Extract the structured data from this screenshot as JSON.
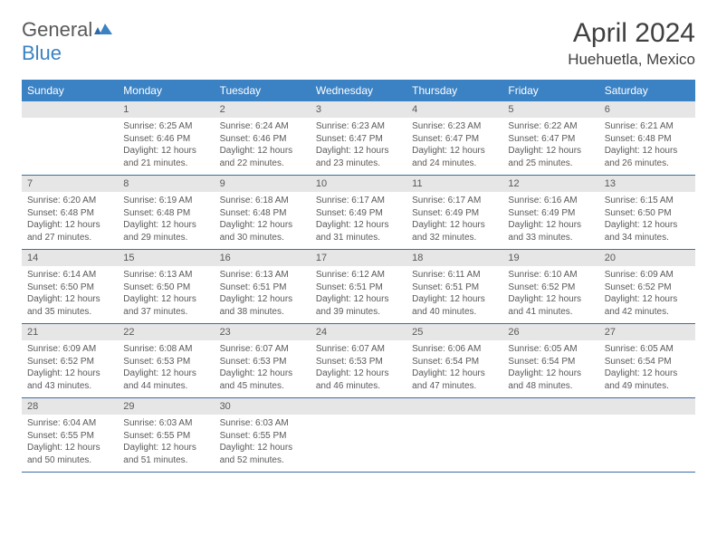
{
  "brand": {
    "part1": "General",
    "part2": "Blue"
  },
  "title": "April 2024",
  "location": "Huehuetla, Mexico",
  "colors": {
    "header_bg": "#3b82c4",
    "header_text": "#ffffff",
    "daynum_bg": "#e6e6e6",
    "text": "#595959",
    "rule": "#3b6fa0",
    "page_bg": "#ffffff"
  },
  "day_labels": [
    "Sunday",
    "Monday",
    "Tuesday",
    "Wednesday",
    "Thursday",
    "Friday",
    "Saturday"
  ],
  "weeks": [
    [
      {
        "n": "",
        "sr": "",
        "ss": "",
        "dl": ""
      },
      {
        "n": "1",
        "sr": "6:25 AM",
        "ss": "6:46 PM",
        "dl": "12 hours and 21 minutes."
      },
      {
        "n": "2",
        "sr": "6:24 AM",
        "ss": "6:46 PM",
        "dl": "12 hours and 22 minutes."
      },
      {
        "n": "3",
        "sr": "6:23 AM",
        "ss": "6:47 PM",
        "dl": "12 hours and 23 minutes."
      },
      {
        "n": "4",
        "sr": "6:23 AM",
        "ss": "6:47 PM",
        "dl": "12 hours and 24 minutes."
      },
      {
        "n": "5",
        "sr": "6:22 AM",
        "ss": "6:47 PM",
        "dl": "12 hours and 25 minutes."
      },
      {
        "n": "6",
        "sr": "6:21 AM",
        "ss": "6:48 PM",
        "dl": "12 hours and 26 minutes."
      }
    ],
    [
      {
        "n": "7",
        "sr": "6:20 AM",
        "ss": "6:48 PM",
        "dl": "12 hours and 27 minutes."
      },
      {
        "n": "8",
        "sr": "6:19 AM",
        "ss": "6:48 PM",
        "dl": "12 hours and 29 minutes."
      },
      {
        "n": "9",
        "sr": "6:18 AM",
        "ss": "6:48 PM",
        "dl": "12 hours and 30 minutes."
      },
      {
        "n": "10",
        "sr": "6:17 AM",
        "ss": "6:49 PM",
        "dl": "12 hours and 31 minutes."
      },
      {
        "n": "11",
        "sr": "6:17 AM",
        "ss": "6:49 PM",
        "dl": "12 hours and 32 minutes."
      },
      {
        "n": "12",
        "sr": "6:16 AM",
        "ss": "6:49 PM",
        "dl": "12 hours and 33 minutes."
      },
      {
        "n": "13",
        "sr": "6:15 AM",
        "ss": "6:50 PM",
        "dl": "12 hours and 34 minutes."
      }
    ],
    [
      {
        "n": "14",
        "sr": "6:14 AM",
        "ss": "6:50 PM",
        "dl": "12 hours and 35 minutes."
      },
      {
        "n": "15",
        "sr": "6:13 AM",
        "ss": "6:50 PM",
        "dl": "12 hours and 37 minutes."
      },
      {
        "n": "16",
        "sr": "6:13 AM",
        "ss": "6:51 PM",
        "dl": "12 hours and 38 minutes."
      },
      {
        "n": "17",
        "sr": "6:12 AM",
        "ss": "6:51 PM",
        "dl": "12 hours and 39 minutes."
      },
      {
        "n": "18",
        "sr": "6:11 AM",
        "ss": "6:51 PM",
        "dl": "12 hours and 40 minutes."
      },
      {
        "n": "19",
        "sr": "6:10 AM",
        "ss": "6:52 PM",
        "dl": "12 hours and 41 minutes."
      },
      {
        "n": "20",
        "sr": "6:09 AM",
        "ss": "6:52 PM",
        "dl": "12 hours and 42 minutes."
      }
    ],
    [
      {
        "n": "21",
        "sr": "6:09 AM",
        "ss": "6:52 PM",
        "dl": "12 hours and 43 minutes."
      },
      {
        "n": "22",
        "sr": "6:08 AM",
        "ss": "6:53 PM",
        "dl": "12 hours and 44 minutes."
      },
      {
        "n": "23",
        "sr": "6:07 AM",
        "ss": "6:53 PM",
        "dl": "12 hours and 45 minutes."
      },
      {
        "n": "24",
        "sr": "6:07 AM",
        "ss": "6:53 PM",
        "dl": "12 hours and 46 minutes."
      },
      {
        "n": "25",
        "sr": "6:06 AM",
        "ss": "6:54 PM",
        "dl": "12 hours and 47 minutes."
      },
      {
        "n": "26",
        "sr": "6:05 AM",
        "ss": "6:54 PM",
        "dl": "12 hours and 48 minutes."
      },
      {
        "n": "27",
        "sr": "6:05 AM",
        "ss": "6:54 PM",
        "dl": "12 hours and 49 minutes."
      }
    ],
    [
      {
        "n": "28",
        "sr": "6:04 AM",
        "ss": "6:55 PM",
        "dl": "12 hours and 50 minutes."
      },
      {
        "n": "29",
        "sr": "6:03 AM",
        "ss": "6:55 PM",
        "dl": "12 hours and 51 minutes."
      },
      {
        "n": "30",
        "sr": "6:03 AM",
        "ss": "6:55 PM",
        "dl": "12 hours and 52 minutes."
      },
      {
        "n": "",
        "sr": "",
        "ss": "",
        "dl": ""
      },
      {
        "n": "",
        "sr": "",
        "ss": "",
        "dl": ""
      },
      {
        "n": "",
        "sr": "",
        "ss": "",
        "dl": ""
      },
      {
        "n": "",
        "sr": "",
        "ss": "",
        "dl": ""
      }
    ]
  ],
  "labels": {
    "sunrise": "Sunrise: ",
    "sunset": "Sunset: ",
    "daylight": "Daylight: "
  }
}
